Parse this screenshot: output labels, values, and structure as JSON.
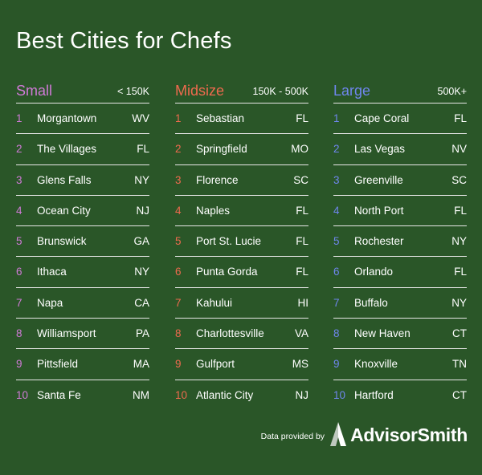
{
  "title": "Best Cities for Chefs",
  "colors": {
    "background": "#2a5628",
    "small": "#cf7ad6",
    "midsize": "#ee6a4e",
    "large": "#6f86ee"
  },
  "footer": {
    "text": "Data provided by",
    "brand": "AdvisorSmith",
    "logo_icon": "advisorsmith-logo-icon"
  },
  "columns": [
    {
      "name": "Small",
      "range": "< 150K",
      "rows": [
        {
          "rank": "1",
          "city": "Morgantown",
          "state": "WV"
        },
        {
          "rank": "2",
          "city": "The Villages",
          "state": "FL"
        },
        {
          "rank": "3",
          "city": "Glens Falls",
          "state": "NY"
        },
        {
          "rank": "4",
          "city": "Ocean City",
          "state": "NJ"
        },
        {
          "rank": "5",
          "city": "Brunswick",
          "state": "GA"
        },
        {
          "rank": "6",
          "city": "Ithaca",
          "state": "NY"
        },
        {
          "rank": "7",
          "city": "Napa",
          "state": "CA"
        },
        {
          "rank": "8",
          "city": "Williamsport",
          "state": "PA"
        },
        {
          "rank": "9",
          "city": "Pittsfield",
          "state": "MA"
        },
        {
          "rank": "10",
          "city": "Santa Fe",
          "state": "NM"
        }
      ]
    },
    {
      "name": "Midsize",
      "range": "150K - 500K",
      "rows": [
        {
          "rank": "1",
          "city": "Sebastian",
          "state": "FL"
        },
        {
          "rank": "2",
          "city": "Springfield",
          "state": "MO"
        },
        {
          "rank": "3",
          "city": "Florence",
          "state": "SC"
        },
        {
          "rank": "4",
          "city": "Naples",
          "state": "FL"
        },
        {
          "rank": "5",
          "city": "Port St. Lucie",
          "state": "FL"
        },
        {
          "rank": "6",
          "city": "Punta Gorda",
          "state": "FL"
        },
        {
          "rank": "7",
          "city": "Kahului",
          "state": "HI"
        },
        {
          "rank": "8",
          "city": "Charlottesville",
          "state": "VA"
        },
        {
          "rank": "9",
          "city": "Gulfport",
          "state": "MS"
        },
        {
          "rank": "10",
          "city": "Atlantic City",
          "state": "NJ"
        }
      ]
    },
    {
      "name": "Large",
      "range": "500K+",
      "rows": [
        {
          "rank": "1",
          "city": "Cape Coral",
          "state": "FL"
        },
        {
          "rank": "2",
          "city": "Las Vegas",
          "state": "NV"
        },
        {
          "rank": "3",
          "city": "Greenville",
          "state": "SC"
        },
        {
          "rank": "4",
          "city": "North Port",
          "state": "FL"
        },
        {
          "rank": "5",
          "city": "Rochester",
          "state": "NY"
        },
        {
          "rank": "6",
          "city": "Orlando",
          "state": "FL"
        },
        {
          "rank": "7",
          "city": "Buffalo",
          "state": "NY"
        },
        {
          "rank": "8",
          "city": "New Haven",
          "state": "CT"
        },
        {
          "rank": "9",
          "city": "Knoxville",
          "state": "TN"
        },
        {
          "rank": "10",
          "city": "Hartford",
          "state": "CT"
        }
      ]
    }
  ]
}
